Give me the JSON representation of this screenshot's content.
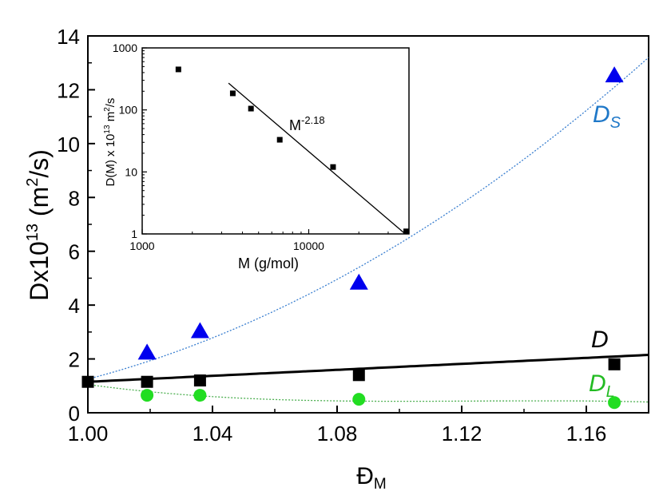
{
  "chart_data": [
    {
      "type": "scatter",
      "role": "main",
      "xlim": [
        1.0,
        1.18
      ],
      "ylim": [
        0,
        14
      ],
      "x_ticks": [
        1.0,
        1.04,
        1.08,
        1.12,
        1.16
      ],
      "x_tick_labels": [
        "1.00",
        "1.04",
        "1.08",
        "1.12",
        "1.16"
      ],
      "y_ticks": [
        0,
        2,
        4,
        6,
        8,
        10,
        12,
        14
      ],
      "y_tick_labels": [
        "0",
        "2",
        "4",
        "6",
        "8",
        "10",
        "12",
        "14"
      ],
      "xlabel": {
        "base": "Đ",
        "sub": "M"
      },
      "ylabel": {
        "pre": "Dx10",
        "sup1": "13",
        "mid": " (m",
        "sup2": "2",
        "post": "/s)"
      },
      "series": [
        {
          "name": "D_S",
          "label": {
            "main": "D",
            "sub": "S"
          },
          "marker": "triangle",
          "color": "#0000ee",
          "line_color": "#3a7fd0",
          "x": [
            1.019,
            1.036,
            1.087,
            1.169
          ],
          "y": [
            2.2,
            3.0,
            4.8,
            12.5
          ],
          "fit": {
            "kind": "quadratic",
            "points": [
              [
                1.0,
                1.25
              ],
              [
                1.09,
                5.6
              ],
              [
                1.18,
                13.2
              ]
            ]
          }
        },
        {
          "name": "D",
          "label": {
            "main": "D",
            "sub": ""
          },
          "marker": "square",
          "color": "#000000",
          "line_color": "#000000",
          "x": [
            1.0,
            1.019,
            1.036,
            1.087,
            1.169
          ],
          "y": [
            1.15,
            1.15,
            1.2,
            1.4,
            1.8
          ],
          "fit": {
            "kind": "linear",
            "points": [
              [
                1.0,
                1.15
              ],
              [
                1.18,
                2.15
              ]
            ]
          }
        },
        {
          "name": "D_L",
          "label": {
            "main": "D",
            "sub": "L"
          },
          "marker": "circle",
          "color": "#22dd22",
          "line_color": "#4caf50",
          "x": [
            1.019,
            1.036,
            1.087,
            1.169
          ],
          "y": [
            0.65,
            0.65,
            0.5,
            0.38
          ],
          "fit": {
            "kind": "decay",
            "points": [
              [
                1.0,
                1.05
              ],
              [
                1.04,
                0.6
              ],
              [
                1.09,
                0.43
              ],
              [
                1.18,
                0.4
              ]
            ]
          }
        }
      ]
    },
    {
      "type": "scatter",
      "role": "inset",
      "log_x": true,
      "log_y": true,
      "xlim": [
        1000,
        40000
      ],
      "ylim": [
        1,
        1000
      ],
      "x_ticks": [
        1000,
        10000
      ],
      "x_tick_labels": [
        "1000",
        "10000"
      ],
      "y_ticks": [
        1,
        10,
        100,
        1000
      ],
      "y_tick_labels": [
        "1",
        "10",
        "100",
        "1000"
      ],
      "xlabel": "M (g/mol)",
      "ylabel": {
        "pre": "D(M) x 10",
        "sup1": "13",
        "mid": " m",
        "sup2": "2",
        "post": "/s"
      },
      "annotation": {
        "base": "M",
        "sup": "-2.18"
      },
      "points": {
        "x": [
          1650,
          3500,
          4500,
          6700,
          14000,
          38500
        ],
        "y": [
          450,
          185,
          105,
          33,
          12,
          1.1
        ]
      },
      "fit": {
        "x": [
          3300,
          38000
        ],
        "y": [
          270,
          1.0
        ]
      }
    }
  ]
}
